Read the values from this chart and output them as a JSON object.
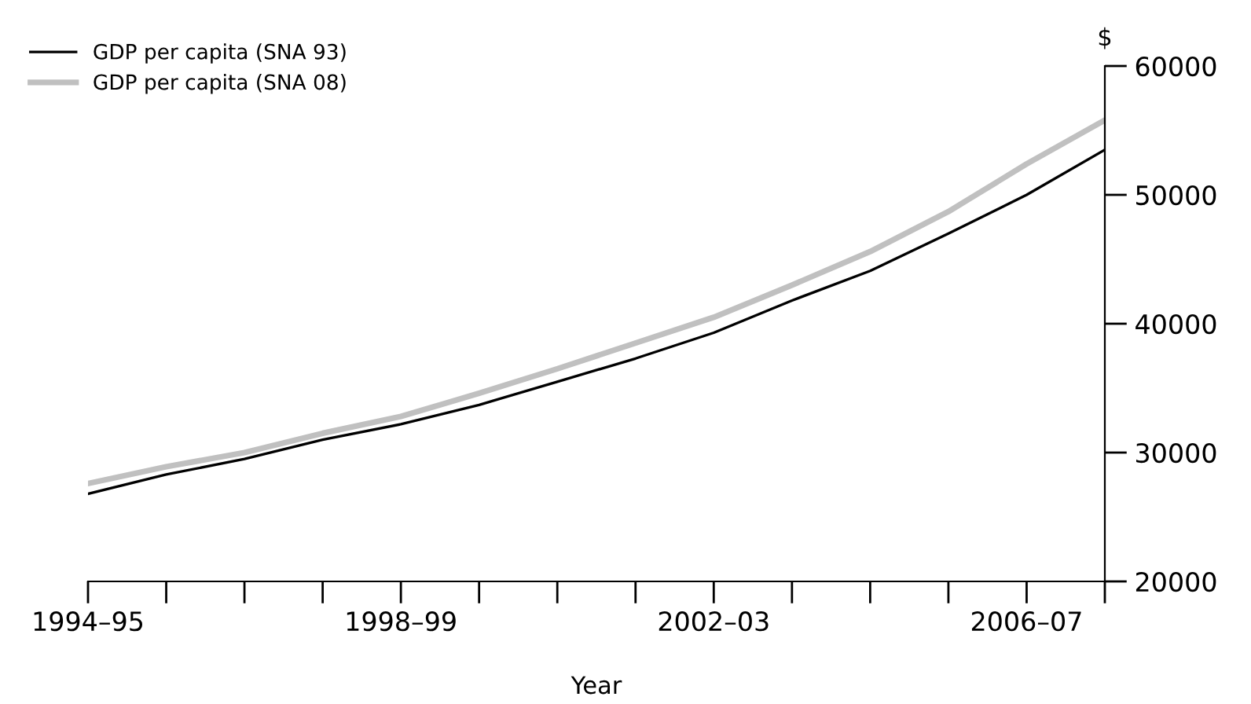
{
  "chart_data": {
    "type": "line",
    "xlabel": "Year",
    "ylabel": "$",
    "categories": [
      "1994–95",
      null,
      null,
      null,
      "1998–99",
      null,
      null,
      null,
      "2002–03",
      null,
      null,
      null,
      "2006–07",
      null
    ],
    "series": [
      {
        "name": "GDP per capita (SNA 93)",
        "color": "#000000",
        "values": [
          26800,
          28300,
          29500,
          31000,
          32200,
          33700,
          35500,
          37300,
          39300,
          41800,
          44100,
          47000,
          50000,
          53500
        ]
      },
      {
        "name": "GDP per capita (SNA 08)",
        "color": "#c0c0c0",
        "values": [
          27600,
          28900,
          30000,
          31500,
          32800,
          34600,
          36500,
          38500,
          40500,
          43000,
          45600,
          48700,
          52400,
          55800
        ]
      }
    ],
    "ylim": [
      20000,
      60000
    ],
    "yticks": [
      20000,
      30000,
      40000,
      50000,
      60000
    ],
    "grid": false,
    "legend": "top left",
    "marker": "none",
    "line_style": "solid"
  }
}
